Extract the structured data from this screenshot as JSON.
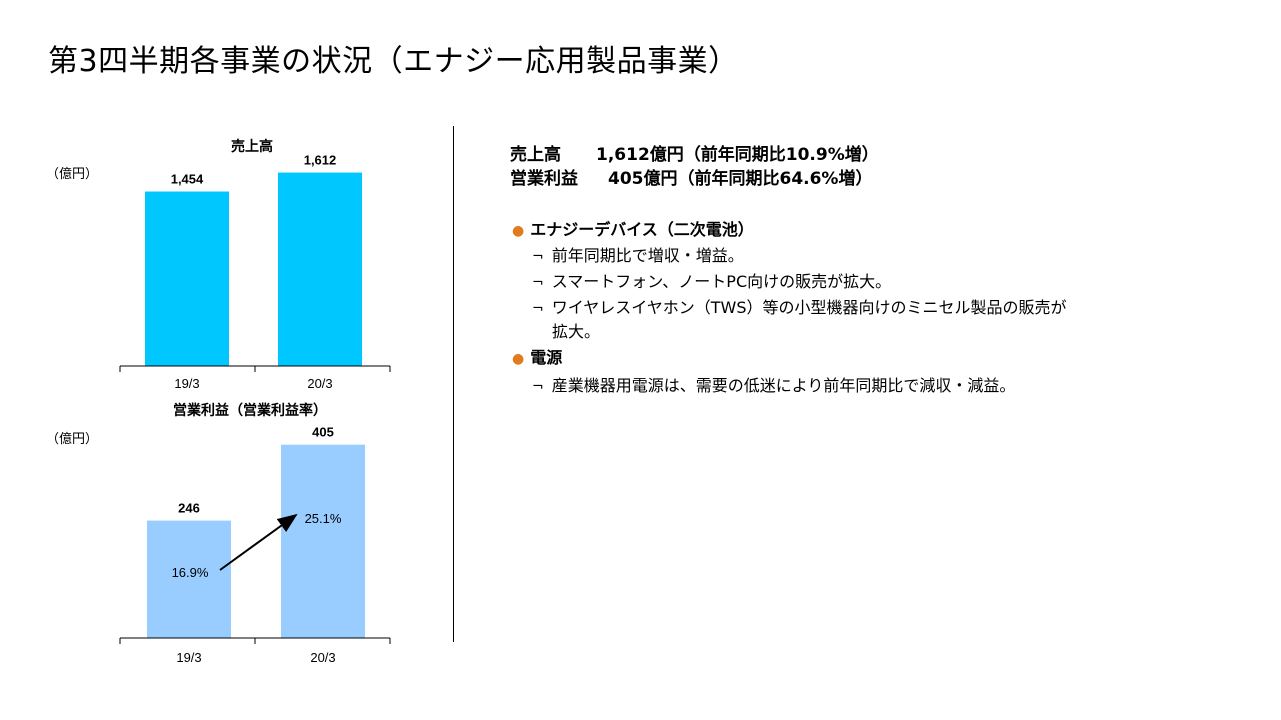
{
  "page": {
    "title": "第3四半期各事業の状況（エナジー応用製品事業）"
  },
  "chart_data": [
    {
      "type": "bar",
      "title": "売上高",
      "unit_label": "（億円）",
      "categories": [
        "19/3",
        "20/3"
      ],
      "values": [
        1454,
        1612
      ],
      "value_labels": [
        "1,454",
        "1,612"
      ],
      "bar_color": "#00c8ff",
      "ylim": [
        0,
        1750
      ]
    },
    {
      "type": "bar",
      "title": "営業利益（営業利益率）",
      "unit_label": "（億円）",
      "categories": [
        "19/3",
        "20/3"
      ],
      "values": [
        246,
        405
      ],
      "value_labels": [
        "246",
        "405"
      ],
      "margins": [
        "16.9%",
        "25.1%"
      ],
      "bar_color": "#99ccff",
      "ylim": [
        0,
        440
      ]
    }
  ],
  "summary": {
    "sales_label": "売上高",
    "sales_value": "1,612億円（前年同期比10.9%増）",
    "profit_label": "営業利益",
    "profit_value": "405億円（前年同期比64.6%増）"
  },
  "segments": [
    {
      "name": "エナジーデバイス（二次電池）",
      "points": [
        "前年同期比で増収・増益。",
        "スマートフォン、ノートPC向けの販売が拡大。",
        "ワイヤレスイヤホン（TWS）等の小型機器向けのミニセル製品の販売が",
        "拡大。"
      ]
    },
    {
      "name": "電源",
      "points": [
        "産業機器用電源は、需要の低迷により前年同期比で減収・減益。"
      ]
    }
  ],
  "bullet_marker": "¬",
  "dot_marker": "●"
}
